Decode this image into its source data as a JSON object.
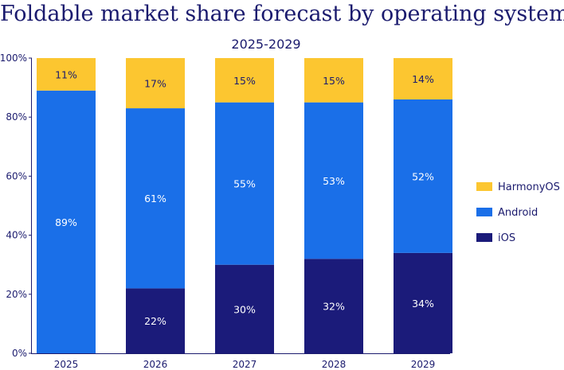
{
  "chart_data": {
    "type": "bar",
    "stacked": true,
    "title": "Foldable market share forecast by operating system",
    "subtitle": "2025-2029",
    "categories": [
      "2025",
      "2026",
      "2027",
      "2028",
      "2029"
    ],
    "series": [
      {
        "name": "iOS",
        "color": "#1b1b7a",
        "text_color": "#ffffff",
        "values": [
          0,
          22,
          30,
          32,
          34
        ],
        "labels": [
          "",
          "22%",
          "30%",
          "32%",
          "34%"
        ]
      },
      {
        "name": "Android",
        "color": "#1a6fe8",
        "text_color": "#ffffff",
        "values": [
          89,
          61,
          55,
          53,
          52
        ],
        "labels": [
          "89%",
          "61%",
          "55%",
          "53%",
          "52%"
        ]
      },
      {
        "name": "HarmonyOS",
        "color": "#fcc630",
        "text_color": "#1b1b6e",
        "values": [
          11,
          17,
          15,
          15,
          14
        ],
        "labels": [
          "11%",
          "17%",
          "15%",
          "15%",
          "14%"
        ]
      }
    ],
    "legend_order": [
      "HarmonyOS",
      "Android",
      "iOS"
    ],
    "legend_position": "right",
    "ylim": [
      0,
      100
    ],
    "yticks": [
      0,
      20,
      40,
      60,
      80,
      100
    ],
    "ytick_labels": [
      "0%",
      "20%",
      "40%",
      "60%",
      "80%",
      "100%"
    ],
    "xlabel": "",
    "ylabel": "",
    "grid": false
  }
}
